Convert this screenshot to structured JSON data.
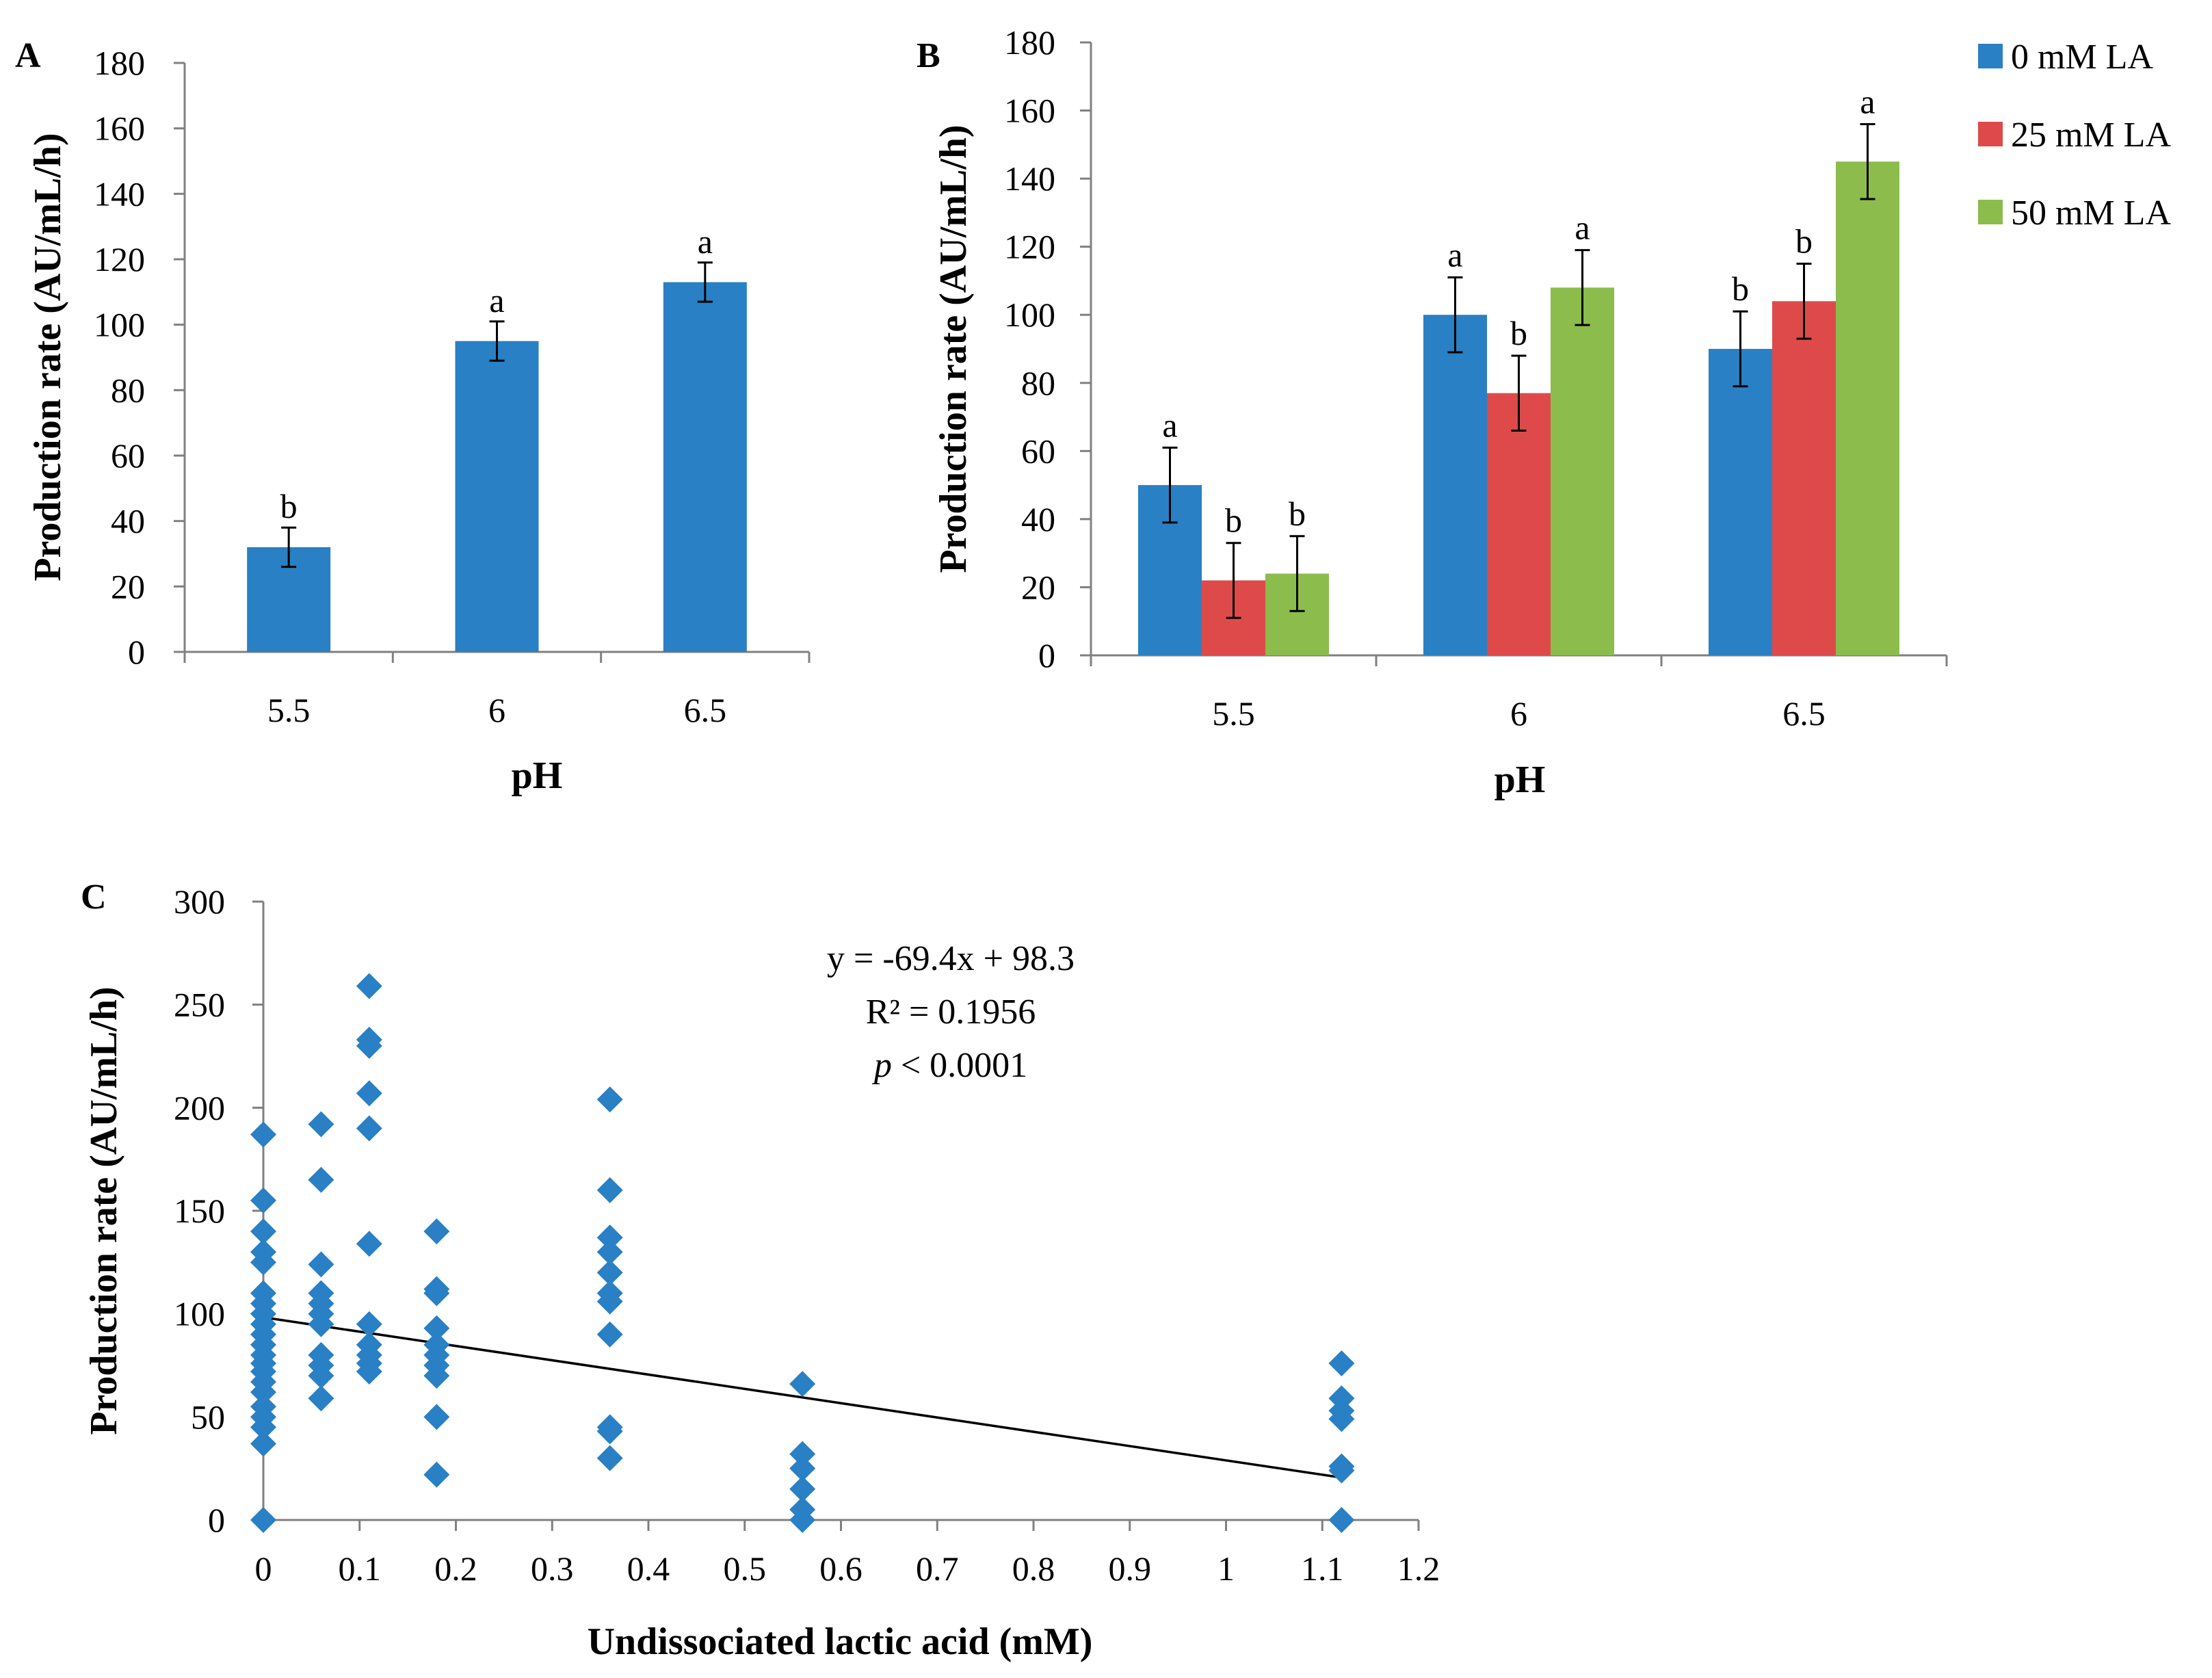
{
  "colors": {
    "blue": "#2980c4",
    "red": "#de4a4a",
    "green": "#8cbc4c"
  },
  "chart_data": [
    {
      "panel": "A",
      "type": "bar",
      "categories": [
        "5.5",
        "6",
        "6.5"
      ],
      "values": [
        32,
        95,
        113
      ],
      "errors": [
        6,
        6,
        6
      ],
      "labels": [
        "b",
        "a",
        "a"
      ],
      "xlabel": "pH",
      "ylabel": "Production rate (AU/mL/h)",
      "ylim": [
        0,
        180
      ],
      "yticks": [
        "0",
        "20",
        "40",
        "60",
        "80",
        "100",
        "120",
        "140",
        "160",
        "180"
      ]
    },
    {
      "panel": "B",
      "type": "bar",
      "categories": [
        "5.5",
        "6",
        "6.5"
      ],
      "series": [
        {
          "name": "0 mM LA",
          "color": "#2980c4",
          "values": [
            50,
            100,
            90
          ],
          "errors": [
            11,
            11,
            11
          ],
          "labels": [
            "a",
            "a",
            "b"
          ]
        },
        {
          "name": "25 mM LA",
          "color": "#de4a4a",
          "values": [
            22,
            77,
            104
          ],
          "errors": [
            11,
            11,
            11
          ],
          "labels": [
            "b",
            "b",
            "b"
          ]
        },
        {
          "name": "50 mM LA",
          "color": "#8cbc4c",
          "values": [
            24,
            108,
            145
          ],
          "errors": [
            11,
            11,
            11
          ],
          "labels": [
            "b",
            "a",
            "a"
          ]
        }
      ],
      "xlabel": "pH",
      "ylabel": "Production rate (AU/mL/h)",
      "ylim": [
        0,
        180
      ],
      "yticks": [
        "0",
        "20",
        "40",
        "60",
        "80",
        "100",
        "120",
        "140",
        "160",
        "180"
      ]
    },
    {
      "panel": "C",
      "type": "scatter",
      "xlabel": "Undissociated lactic acid (mM)",
      "ylabel": "Production rate (AU/mL/h)",
      "xlim": [
        0,
        1.2
      ],
      "ylim": [
        0,
        300
      ],
      "xticks": [
        "0",
        "0.1",
        "0.2",
        "0.3",
        "0.4",
        "0.5",
        "0.6",
        "0.7",
        "0.8",
        "0.9",
        "1",
        "1.1",
        "1.2"
      ],
      "yticks": [
        "0",
        "50",
        "100",
        "150",
        "200",
        "250",
        "300"
      ],
      "equation": "y = -69.4x + 98.3",
      "r2": "R² = 0.1956",
      "p_var": "p",
      "p_rest": " < 0.0001",
      "trendline": {
        "slope": -69.4,
        "intercept": 98.3,
        "x_from": 0,
        "x_to": 1.12
      },
      "points": [
        [
          0,
          0
        ],
        [
          0,
          37
        ],
        [
          0,
          45
        ],
        [
          0,
          50
        ],
        [
          0,
          55
        ],
        [
          0,
          62
        ],
        [
          0,
          67
        ],
        [
          0,
          72
        ],
        [
          0,
          76
        ],
        [
          0,
          80
        ],
        [
          0,
          85
        ],
        [
          0,
          90
        ],
        [
          0,
          95
        ],
        [
          0,
          100
        ],
        [
          0,
          105
        ],
        [
          0,
          110
        ],
        [
          0,
          125
        ],
        [
          0,
          130
        ],
        [
          0,
          140
        ],
        [
          0,
          155
        ],
        [
          0,
          187
        ],
        [
          0.06,
          59
        ],
        [
          0.06,
          70
        ],
        [
          0.06,
          75
        ],
        [
          0.06,
          80
        ],
        [
          0.06,
          95
        ],
        [
          0.06,
          100
        ],
        [
          0.06,
          105
        ],
        [
          0.06,
          110
        ],
        [
          0.06,
          124
        ],
        [
          0.06,
          165
        ],
        [
          0.06,
          192
        ],
        [
          0.11,
          72
        ],
        [
          0.11,
          76
        ],
        [
          0.11,
          80
        ],
        [
          0.11,
          85
        ],
        [
          0.11,
          95
        ],
        [
          0.11,
          134
        ],
        [
          0.11,
          190
        ],
        [
          0.11,
          207
        ],
        [
          0.11,
          230
        ],
        [
          0.11,
          233
        ],
        [
          0.11,
          259
        ],
        [
          0.18,
          22
        ],
        [
          0.18,
          50
        ],
        [
          0.18,
          70
        ],
        [
          0.18,
          75
        ],
        [
          0.18,
          80
        ],
        [
          0.18,
          85
        ],
        [
          0.18,
          93
        ],
        [
          0.18,
          110
        ],
        [
          0.18,
          112
        ],
        [
          0.18,
          140
        ],
        [
          0.36,
          30
        ],
        [
          0.36,
          43
        ],
        [
          0.36,
          45
        ],
        [
          0.36,
          90
        ],
        [
          0.36,
          106
        ],
        [
          0.36,
          110
        ],
        [
          0.36,
          120
        ],
        [
          0.36,
          130
        ],
        [
          0.36,
          137
        ],
        [
          0.36,
          160
        ],
        [
          0.36,
          204
        ],
        [
          0.56,
          0
        ],
        [
          0.56,
          5
        ],
        [
          0.56,
          15
        ],
        [
          0.56,
          25
        ],
        [
          0.56,
          32
        ],
        [
          0.56,
          66
        ],
        [
          1.12,
          0
        ],
        [
          1.12,
          24
        ],
        [
          1.12,
          26
        ],
        [
          1.12,
          49
        ],
        [
          1.12,
          53
        ],
        [
          1.12,
          59
        ],
        [
          1.12,
          76
        ]
      ]
    }
  ]
}
